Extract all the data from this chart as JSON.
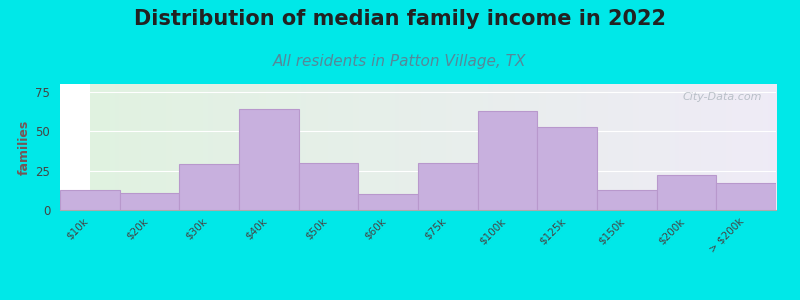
{
  "title": "Distribution of median family income in 2022",
  "subtitle": "All residents in Patton Village, TX",
  "ylabel": "families",
  "categories": [
    "$10k",
    "$20k",
    "$30k",
    "$40k",
    "$50k",
    "$60k",
    "$75k",
    "$100k",
    "$125k",
    "$150k",
    "$200k",
    "> $200k"
  ],
  "values": [
    13,
    11,
    29,
    64,
    30,
    10,
    30,
    63,
    53,
    13,
    22,
    17
  ],
  "bar_color": "#c8b0de",
  "bar_edge_color": "#b898cc",
  "background_outer": "#00e8e8",
  "yticks": [
    0,
    25,
    50,
    75
  ],
  "ylim": [
    0,
    80
  ],
  "title_fontsize": 15,
  "subtitle_fontsize": 11,
  "title_color": "#222222",
  "subtitle_color": "#558899",
  "ylabel_color": "#775555",
  "watermark_text": "City-Data.com",
  "watermark_color": "#b0b8c0"
}
